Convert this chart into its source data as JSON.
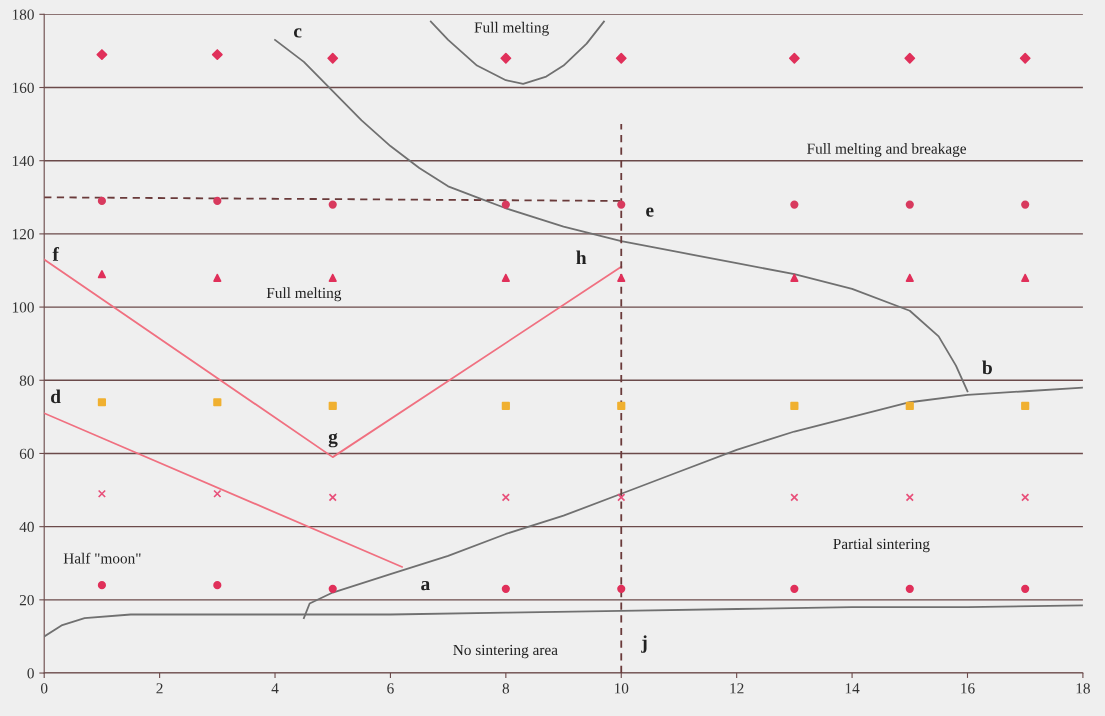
{
  "chart_data": {
    "type": "scatter",
    "xlim": [
      0,
      18
    ],
    "ylim": [
      0,
      180
    ],
    "xticks": [
      0,
      2,
      4,
      6,
      8,
      10,
      12,
      14,
      16,
      18
    ],
    "yticks": [
      0,
      20,
      40,
      60,
      80,
      100,
      120,
      140,
      160,
      180
    ],
    "grid": "y",
    "x": [
      1,
      3,
      5,
      8,
      10,
      13,
      15,
      17
    ],
    "series": [
      {
        "color": "#e0305a",
        "marker": "diamond",
        "values": [
          169,
          169,
          168,
          168,
          168,
          168,
          168,
          168
        ]
      },
      {
        "color": "#d83a5e",
        "marker": "circle",
        "values": [
          129,
          129,
          128,
          128,
          128,
          128,
          128,
          128
        ]
      },
      {
        "color": "#e0305a",
        "marker": "triangle",
        "values": [
          109,
          108,
          108,
          108,
          108,
          108,
          108,
          108
        ]
      },
      {
        "color": "#f0b030",
        "marker": "square",
        "values": [
          74,
          74,
          73,
          73,
          73,
          73,
          73,
          73
        ]
      },
      {
        "color": "#e8507a",
        "marker": "cross",
        "values": [
          49,
          49,
          48,
          48,
          48,
          48,
          48,
          48
        ]
      },
      {
        "color": "#e0305a",
        "marker": "circle",
        "values": [
          24,
          24,
          23,
          23,
          23,
          23,
          23,
          23
        ]
      },
      {
        "type": "line",
        "color": "#707070",
        "x": [
          4.0,
          4.5,
          5,
          5.5,
          6,
          6.5,
          7,
          7.5,
          8,
          9,
          10,
          11,
          12,
          13,
          14,
          15,
          15.5,
          15.8,
          16
        ],
        "values": [
          173,
          167,
          159,
          151,
          144,
          138,
          133,
          130,
          127,
          122,
          118,
          115,
          112,
          109,
          105,
          99,
          92,
          84,
          77
        ]
      },
      {
        "type": "line",
        "color": "#707070",
        "x": [
          4.5,
          4.6,
          5,
          6,
          7,
          8,
          9,
          10,
          11,
          12,
          13,
          14,
          15,
          16,
          17,
          18
        ],
        "values": [
          15,
          19,
          22,
          27,
          32,
          38,
          43,
          49,
          55,
          61,
          66,
          70,
          74,
          76,
          77,
          78
        ]
      },
      {
        "type": "line",
        "color": "#707070",
        "x": [
          0,
          0.3,
          0.7,
          1.5,
          3,
          4.5,
          6,
          8,
          10,
          12,
          14,
          16,
          18
        ],
        "values": [
          10,
          13,
          15,
          16,
          16,
          16,
          16,
          16.5,
          17,
          17.5,
          18,
          18,
          18.5
        ]
      },
      {
        "type": "line",
        "color": "#707070",
        "x": [
          6.7,
          7,
          7.5,
          8,
          8.3,
          8.7,
          9,
          9.4,
          9.7
        ],
        "values": [
          178,
          173,
          166,
          162,
          161,
          163,
          166,
          172,
          178
        ]
      },
      {
        "type": "line",
        "color": "#f07080",
        "x": [
          0,
          5,
          10
        ],
        "values": [
          113,
          59,
          111
        ]
      },
      {
        "type": "line",
        "color": "#f07080",
        "x": [
          0,
          6.2
        ],
        "values": [
          71,
          29
        ]
      },
      {
        "type": "line",
        "color": "#6a3a3a",
        "line_style": "dashed",
        "x": [
          0,
          10
        ],
        "values": [
          130,
          129
        ]
      },
      {
        "type": "line",
        "color": "#6a3a3a",
        "line_style": "dashed",
        "x": [
          10,
          10
        ],
        "values": [
          0,
          150
        ]
      }
    ],
    "annotations": [
      "c",
      "Full melting",
      "Full melting and breakage",
      "e",
      "f",
      "h",
      "Full melting",
      "d",
      "g",
      "b",
      "a",
      "Half \"moon\"",
      "Partial sintering",
      "No sintering area",
      "j"
    ]
  }
}
